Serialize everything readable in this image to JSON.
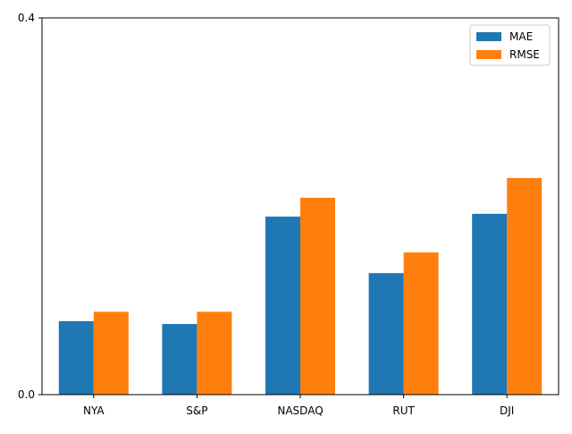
{
  "chart_data": {
    "type": "bar",
    "title": "",
    "xlabel": "",
    "ylabel": "",
    "categories": [
      "NYA",
      "S&P",
      "NASDAQ",
      "RUT",
      "DJI"
    ],
    "series": [
      {
        "name": "MAE",
        "color": "#1f77b4",
        "values": [
          0.078,
          0.075,
          0.189,
          0.129,
          0.192
        ]
      },
      {
        "name": "RMSE",
        "color": "#ff7f0e",
        "values": [
          0.088,
          0.088,
          0.209,
          0.151,
          0.23
        ]
      }
    ],
    "ylim": [
      0.0,
      0.4
    ],
    "yticks": [
      "0.0",
      "0.4"
    ],
    "grid": false,
    "legend_position": "top-right"
  }
}
